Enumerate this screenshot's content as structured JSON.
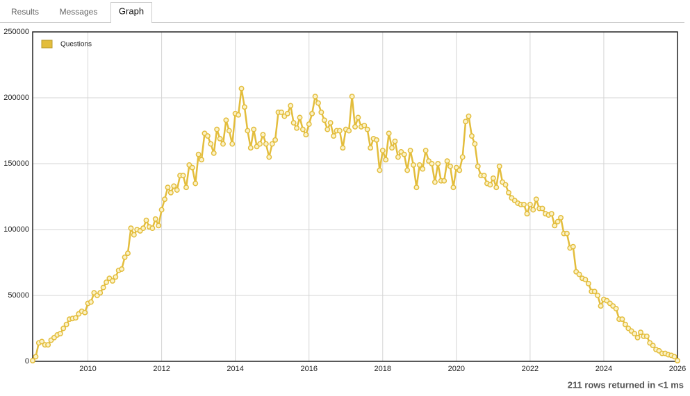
{
  "tabs": [
    "Results",
    "Messages",
    "Graph"
  ],
  "chart_data": {
    "type": "line",
    "x": [
      2008.5,
      2008.583,
      2008.667,
      2008.75,
      2008.833,
      2008.917,
      2009,
      2009.083,
      2009.167,
      2009.25,
      2009.333,
      2009.417,
      2009.5,
      2009.583,
      2009.667,
      2009.75,
      2009.833,
      2009.917,
      2010,
      2010.083,
      2010.167,
      2010.25,
      2010.333,
      2010.417,
      2010.5,
      2010.583,
      2010.667,
      2010.75,
      2010.833,
      2010.917,
      2011,
      2011.083,
      2011.167,
      2011.25,
      2011.333,
      2011.417,
      2011.5,
      2011.583,
      2011.667,
      2011.75,
      2011.833,
      2011.917,
      2012,
      2012.083,
      2012.167,
      2012.25,
      2012.333,
      2012.417,
      2012.5,
      2012.583,
      2012.667,
      2012.75,
      2012.833,
      2012.917,
      2013,
      2013.083,
      2013.167,
      2013.25,
      2013.333,
      2013.417,
      2013.5,
      2013.583,
      2013.667,
      2013.75,
      2013.833,
      2013.917,
      2014,
      2014.083,
      2014.167,
      2014.25,
      2014.333,
      2014.417,
      2014.5,
      2014.583,
      2014.667,
      2014.75,
      2014.833,
      2014.917,
      2015,
      2015.083,
      2015.167,
      2015.25,
      2015.333,
      2015.417,
      2015.5,
      2015.583,
      2015.667,
      2015.75,
      2015.833,
      2015.917,
      2016,
      2016.083,
      2016.167,
      2016.25,
      2016.333,
      2016.417,
      2016.5,
      2016.583,
      2016.667,
      2016.75,
      2016.833,
      2016.917,
      2017,
      2017.083,
      2017.167,
      2017.25,
      2017.333,
      2017.417,
      2017.5,
      2017.583,
      2017.667,
      2017.75,
      2017.833,
      2017.917,
      2018,
      2018.083,
      2018.167,
      2018.25,
      2018.333,
      2018.417,
      2018.5,
      2018.583,
      2018.667,
      2018.75,
      2018.833,
      2018.917,
      2019,
      2019.083,
      2019.167,
      2019.25,
      2019.333,
      2019.417,
      2019.5,
      2019.583,
      2019.667,
      2019.75,
      2019.833,
      2019.917,
      2020,
      2020.083,
      2020.167,
      2020.25,
      2020.333,
      2020.417,
      2020.5,
      2020.583,
      2020.667,
      2020.75,
      2020.833,
      2020.917,
      2021,
      2021.083,
      2021.167,
      2021.25,
      2021.333,
      2021.417,
      2021.5,
      2021.583,
      2021.667,
      2021.75,
      2021.833,
      2021.917,
      2022,
      2022.083,
      2022.167,
      2022.25,
      2022.333,
      2022.417,
      2022.5,
      2022.583,
      2022.667,
      2022.75,
      2022.833,
      2022.917,
      2023,
      2023.083,
      2023.167,
      2023.25,
      2023.333,
      2023.417,
      2023.5,
      2023.583,
      2023.667,
      2023.75,
      2023.833,
      2023.917,
      2024,
      2024.083,
      2024.167,
      2024.25,
      2024.333,
      2024.417,
      2024.5,
      2024.583,
      2024.667,
      2024.75,
      2024.833,
      2024.917,
      2025,
      2025.083,
      2025.167,
      2025.25,
      2025.333,
      2025.417,
      2025.5,
      2025.583,
      2025.667,
      2025.75,
      2025.833,
      2025.917,
      2026
    ],
    "series": [
      {
        "name": "Questions",
        "color": "#e3bd3c",
        "values": [
          500,
          3500,
          14000,
          15000,
          12500,
          12500,
          16000,
          18000,
          20000,
          21000,
          25000,
          28000,
          32000,
          32500,
          33000,
          36000,
          38000,
          37000,
          44000,
          45000,
          52000,
          50000,
          52000,
          56000,
          60000,
          63000,
          61000,
          64000,
          69000,
          70000,
          79000,
          82000,
          101000,
          96000,
          100000,
          99000,
          101000,
          107000,
          102000,
          101000,
          108000,
          103000,
          115000,
          123000,
          132000,
          128000,
          133000,
          130000,
          141000,
          141000,
          132000,
          149000,
          147000,
          135000,
          157000,
          153000,
          173000,
          171000,
          165000,
          158000,
          176000,
          169000,
          165000,
          183000,
          175000,
          165000,
          188000,
          187000,
          207000,
          193000,
          175000,
          162000,
          176000,
          163000,
          165000,
          172000,
          165000,
          155000,
          165000,
          168000,
          189000,
          189000,
          186000,
          188000,
          194000,
          181000,
          177000,
          185000,
          176000,
          172000,
          180000,
          188000,
          201000,
          196000,
          189000,
          183000,
          176000,
          181000,
          171000,
          175000,
          175000,
          162000,
          176000,
          175000,
          201000,
          178000,
          185000,
          178000,
          179000,
          176000,
          162000,
          169000,
          168000,
          145000,
          160000,
          153000,
          173000,
          162000,
          167000,
          155000,
          159000,
          157000,
          145000,
          160000,
          149000,
          132000,
          149000,
          146000,
          160000,
          152000,
          150000,
          136000,
          150000,
          137000,
          137000,
          152000,
          148000,
          132000,
          147000,
          145000,
          155000,
          182000,
          186000,
          171000,
          165000,
          148000,
          141000,
          141000,
          135000,
          134000,
          139000,
          132000,
          148000,
          136000,
          134000,
          128000,
          124000,
          122000,
          120000,
          119000,
          119000,
          112000,
          119000,
          115000,
          123000,
          116000,
          116000,
          112000,
          111000,
          112000,
          103000,
          106000,
          109000,
          97000,
          97000,
          86000,
          87000,
          68000,
          66000,
          63000,
          62000,
          59000,
          53000,
          53000,
          50000,
          42000,
          47000,
          46000,
          44000,
          42000,
          40000,
          32000,
          32000,
          28000,
          25000,
          23000,
          21000,
          18000,
          22000,
          19000,
          19000,
          14000,
          12000,
          9000,
          8000,
          6000,
          6000,
          5000,
          4500,
          3500,
          500
        ]
      }
    ],
    "xlim": [
      2008.5,
      2026
    ],
    "xticks": [
      2010,
      2012,
      2014,
      2016,
      2018,
      2020,
      2022,
      2024,
      2026
    ],
    "ylim": [
      0,
      250000
    ],
    "yticks": [
      0,
      50000,
      100000,
      150000,
      200000,
      250000
    ],
    "grid": true,
    "legend": "top-left"
  },
  "status": "211 rows returned in <1 ms"
}
